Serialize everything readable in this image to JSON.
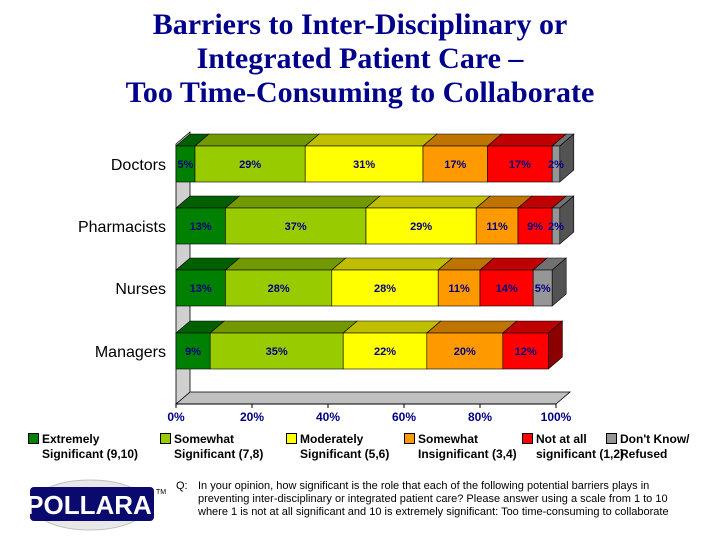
{
  "title": {
    "line1": "Barriers to Inter-Disciplinary or",
    "line2": "Integrated Patient Care –",
    "line3": "Too Time-Consuming to Collaborate"
  },
  "chart_data": {
    "type": "bar",
    "orientation": "horizontal",
    "stacked": true,
    "categories": [
      "Doctors",
      "Pharmacists",
      "Nurses",
      "Managers"
    ],
    "series": [
      {
        "name": "Extremely Significant (9,10)",
        "color": "#008000",
        "values": [
          5,
          13,
          13,
          9
        ]
      },
      {
        "name": "Somewhat Significant (7,8)",
        "color": "#99cc00",
        "values": [
          29,
          37,
          28,
          35
        ]
      },
      {
        "name": "Moderately Significant (5,6)",
        "color": "#ffff00",
        "values": [
          31,
          29,
          28,
          22
        ]
      },
      {
        "name": "Somewhat Insignificant (3,4)",
        "color": "#ff9900",
        "values": [
          17,
          11,
          11,
          20
        ]
      },
      {
        "name": "Not at all significant (1,2)",
        "color": "#ff0000",
        "values": [
          17,
          9,
          14,
          12
        ]
      },
      {
        "name": "Don't Know/ Refused",
        "color": "#969696",
        "values": [
          2,
          2,
          5,
          0
        ]
      }
    ],
    "xlim": [
      0,
      100
    ],
    "xticks": [
      "0%",
      "20%",
      "40%",
      "60%",
      "80%",
      "100%"
    ],
    "legend_position": "bottom"
  },
  "legend": [
    {
      "line1": "Extremely",
      "line2": "Significant (9,10)",
      "color": "#008000"
    },
    {
      "line1": "Somewhat",
      "line2": "Significant (7,8)",
      "color": "#99cc00"
    },
    {
      "line1": "Moderately",
      "line2": "Significant (5,6)",
      "color": "#ffff00"
    },
    {
      "line1": "Somewhat",
      "line2": "Insignificant (3,4)",
      "color": "#ff9900"
    },
    {
      "line1": "Not at all",
      "line2": "significant (1,2)",
      "color": "#ff0000"
    },
    {
      "line1": "Don't Know/",
      "line2": "Refused",
      "color": "#969696"
    }
  ],
  "question": {
    "tag": "Q:",
    "text": "In your opinion, how significant is the role that each of the following potential barriers plays in preventing inter-disciplinary or integrated patient care? Please answer using a scale from 1 to 10 where 1 is not at all significant and 10 is extremely significant: Too time-consuming to collaborate"
  },
  "logo": {
    "text": "POLLARA",
    "tm": "TM"
  }
}
